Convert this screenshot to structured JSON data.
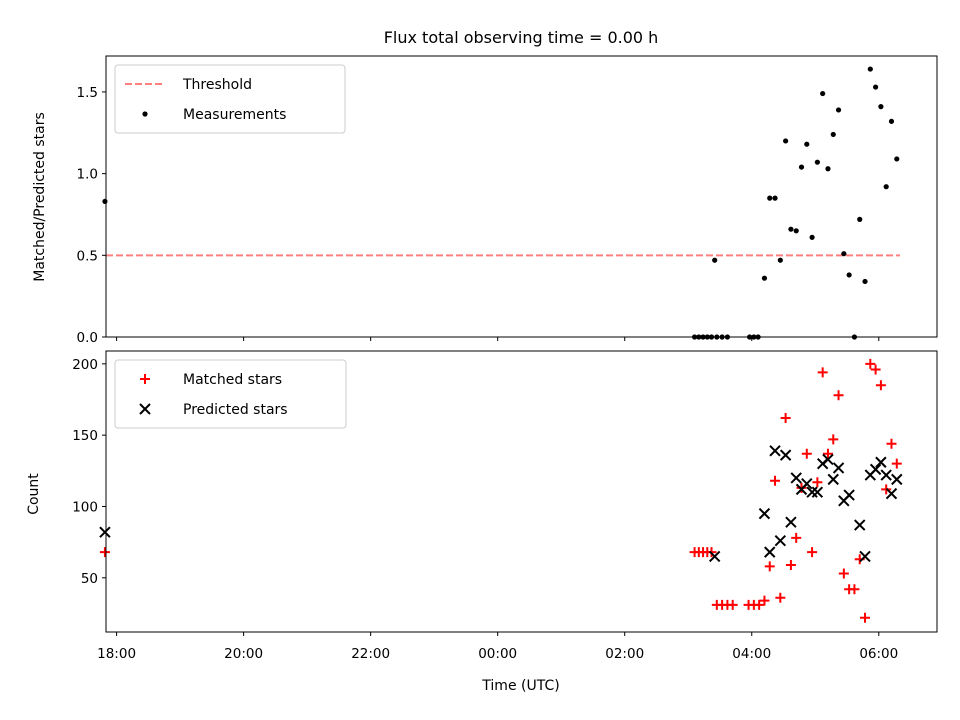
{
  "chart_data": [
    {
      "type": "scatter",
      "title": "Flux total observing time = 0.00 h",
      "xlabel": "",
      "ylabel": "Matched/Predicted stars",
      "xlim": [
        "17:50",
        "06:55"
      ],
      "ylim": [
        0,
        1.72
      ],
      "yticks": [
        0.0,
        0.5,
        1.0,
        1.5
      ],
      "ytick_labels": [
        "0.0",
        "0.5",
        "1.0",
        "1.5"
      ],
      "legend_position": "top-left",
      "series": [
        {
          "name": "Threshold",
          "kind": "dashed-line",
          "color": "#ff7f7f",
          "x": [
            "17:50",
            "06:20"
          ],
          "y": [
            0.5,
            0.5
          ]
        },
        {
          "name": "Measurements",
          "kind": "dot",
          "color": "#000000",
          "points": [
            {
              "x": "17:49",
              "y": 0.83
            },
            {
              "x": "03:06",
              "y": 0.0
            },
            {
              "x": "03:10",
              "y": 0.0
            },
            {
              "x": "03:14",
              "y": 0.0
            },
            {
              "x": "03:18",
              "y": 0.0
            },
            {
              "x": "03:22",
              "y": 0.0
            },
            {
              "x": "03:25",
              "y": 0.47
            },
            {
              "x": "03:27",
              "y": 0.0
            },
            {
              "x": "03:32",
              "y": 0.0
            },
            {
              "x": "03:37",
              "y": 0.0
            },
            {
              "x": "03:58",
              "y": 0.0
            },
            {
              "x": "04:02",
              "y": 0.0
            },
            {
              "x": "04:06",
              "y": 0.0
            },
            {
              "x": "04:12",
              "y": 0.36
            },
            {
              "x": "04:17",
              "y": 0.85
            },
            {
              "x": "04:22",
              "y": 0.85
            },
            {
              "x": "04:27",
              "y": 0.47
            },
            {
              "x": "04:32",
              "y": 1.2
            },
            {
              "x": "04:37",
              "y": 0.66
            },
            {
              "x": "04:42",
              "y": 0.65
            },
            {
              "x": "04:47",
              "y": 1.04
            },
            {
              "x": "04:52",
              "y": 1.18
            },
            {
              "x": "04:57",
              "y": 0.61
            },
            {
              "x": "05:02",
              "y": 1.07
            },
            {
              "x": "05:07",
              "y": 1.49
            },
            {
              "x": "05:12",
              "y": 1.03
            },
            {
              "x": "05:17",
              "y": 1.24
            },
            {
              "x": "05:22",
              "y": 1.39
            },
            {
              "x": "05:27",
              "y": 0.51
            },
            {
              "x": "05:32",
              "y": 0.38
            },
            {
              "x": "05:37",
              "y": 0.0
            },
            {
              "x": "05:42",
              "y": 0.72
            },
            {
              "x": "05:47",
              "y": 0.34
            },
            {
              "x": "05:52",
              "y": 1.64
            },
            {
              "x": "05:57",
              "y": 1.53
            },
            {
              "x": "06:02",
              "y": 1.41
            },
            {
              "x": "06:07",
              "y": 0.92
            },
            {
              "x": "06:12",
              "y": 1.32
            },
            {
              "x": "06:17",
              "y": 1.09
            }
          ]
        }
      ]
    },
    {
      "type": "scatter",
      "title": "",
      "xlabel": "Time (UTC)",
      "ylabel": "Count",
      "xlim": [
        "17:50",
        "06:55"
      ],
      "ylim": [
        12,
        209
      ],
      "xticks": [
        "18:00",
        "20:00",
        "22:00",
        "00:00",
        "02:00",
        "04:00",
        "06:00"
      ],
      "yticks": [
        50,
        100,
        150,
        200
      ],
      "ytick_labels": [
        "50",
        "100",
        "150",
        "200"
      ],
      "legend_position": "top-left",
      "series": [
        {
          "name": "Matched stars",
          "kind": "plus",
          "color": "#ff0000",
          "points": [
            {
              "x": "17:49",
              "y": 68
            },
            {
              "x": "03:06",
              "y": 68
            },
            {
              "x": "03:10",
              "y": 68
            },
            {
              "x": "03:14",
              "y": 68
            },
            {
              "x": "03:18",
              "y": 68
            },
            {
              "x": "03:22",
              "y": 68
            },
            {
              "x": "03:27",
              "y": 31
            },
            {
              "x": "03:32",
              "y": 31
            },
            {
              "x": "03:37",
              "y": 31
            },
            {
              "x": "03:42",
              "y": 31
            },
            {
              "x": "03:57",
              "y": 31
            },
            {
              "x": "04:02",
              "y": 31
            },
            {
              "x": "04:07",
              "y": 31
            },
            {
              "x": "04:12",
              "y": 34
            },
            {
              "x": "04:17",
              "y": 58
            },
            {
              "x": "04:22",
              "y": 118
            },
            {
              "x": "04:27",
              "y": 36
            },
            {
              "x": "04:32",
              "y": 162
            },
            {
              "x": "04:37",
              "y": 59
            },
            {
              "x": "04:42",
              "y": 78
            },
            {
              "x": "04:47",
              "y": 113
            },
            {
              "x": "04:52",
              "y": 137
            },
            {
              "x": "04:57",
              "y": 68
            },
            {
              "x": "05:02",
              "y": 117
            },
            {
              "x": "05:07",
              "y": 194
            },
            {
              "x": "05:12",
              "y": 137
            },
            {
              "x": "05:17",
              "y": 147
            },
            {
              "x": "05:22",
              "y": 178
            },
            {
              "x": "05:27",
              "y": 53
            },
            {
              "x": "05:32",
              "y": 42
            },
            {
              "x": "05:37",
              "y": 42
            },
            {
              "x": "05:42",
              "y": 63
            },
            {
              "x": "05:47",
              "y": 22
            },
            {
              "x": "05:52",
              "y": 200
            },
            {
              "x": "05:57",
              "y": 196
            },
            {
              "x": "06:02",
              "y": 185
            },
            {
              "x": "06:07",
              "y": 112
            },
            {
              "x": "06:12",
              "y": 144
            },
            {
              "x": "06:17",
              "y": 130
            }
          ]
        },
        {
          "name": "Predicted stars",
          "kind": "cross",
          "color": "#000000",
          "points": [
            {
              "x": "17:49",
              "y": 82
            },
            {
              "x": "03:25",
              "y": 65
            },
            {
              "x": "04:12",
              "y": 95
            },
            {
              "x": "04:17",
              "y": 68
            },
            {
              "x": "04:22",
              "y": 139
            },
            {
              "x": "04:27",
              "y": 76
            },
            {
              "x": "04:32",
              "y": 136
            },
            {
              "x": "04:37",
              "y": 89
            },
            {
              "x": "04:42",
              "y": 120
            },
            {
              "x": "04:47",
              "y": 112
            },
            {
              "x": "04:52",
              "y": 116
            },
            {
              "x": "04:57",
              "y": 110
            },
            {
              "x": "05:02",
              "y": 110
            },
            {
              "x": "05:07",
              "y": 130
            },
            {
              "x": "05:12",
              "y": 133
            },
            {
              "x": "05:17",
              "y": 119
            },
            {
              "x": "05:22",
              "y": 127
            },
            {
              "x": "05:27",
              "y": 104
            },
            {
              "x": "05:32",
              "y": 108
            },
            {
              "x": "05:42",
              "y": 87
            },
            {
              "x": "05:47",
              "y": 65
            },
            {
              "x": "05:52",
              "y": 122
            },
            {
              "x": "05:57",
              "y": 126
            },
            {
              "x": "06:02",
              "y": 131
            },
            {
              "x": "06:07",
              "y": 122
            },
            {
              "x": "06:12",
              "y": 109
            },
            {
              "x": "06:17",
              "y": 119
            }
          ]
        }
      ]
    }
  ]
}
